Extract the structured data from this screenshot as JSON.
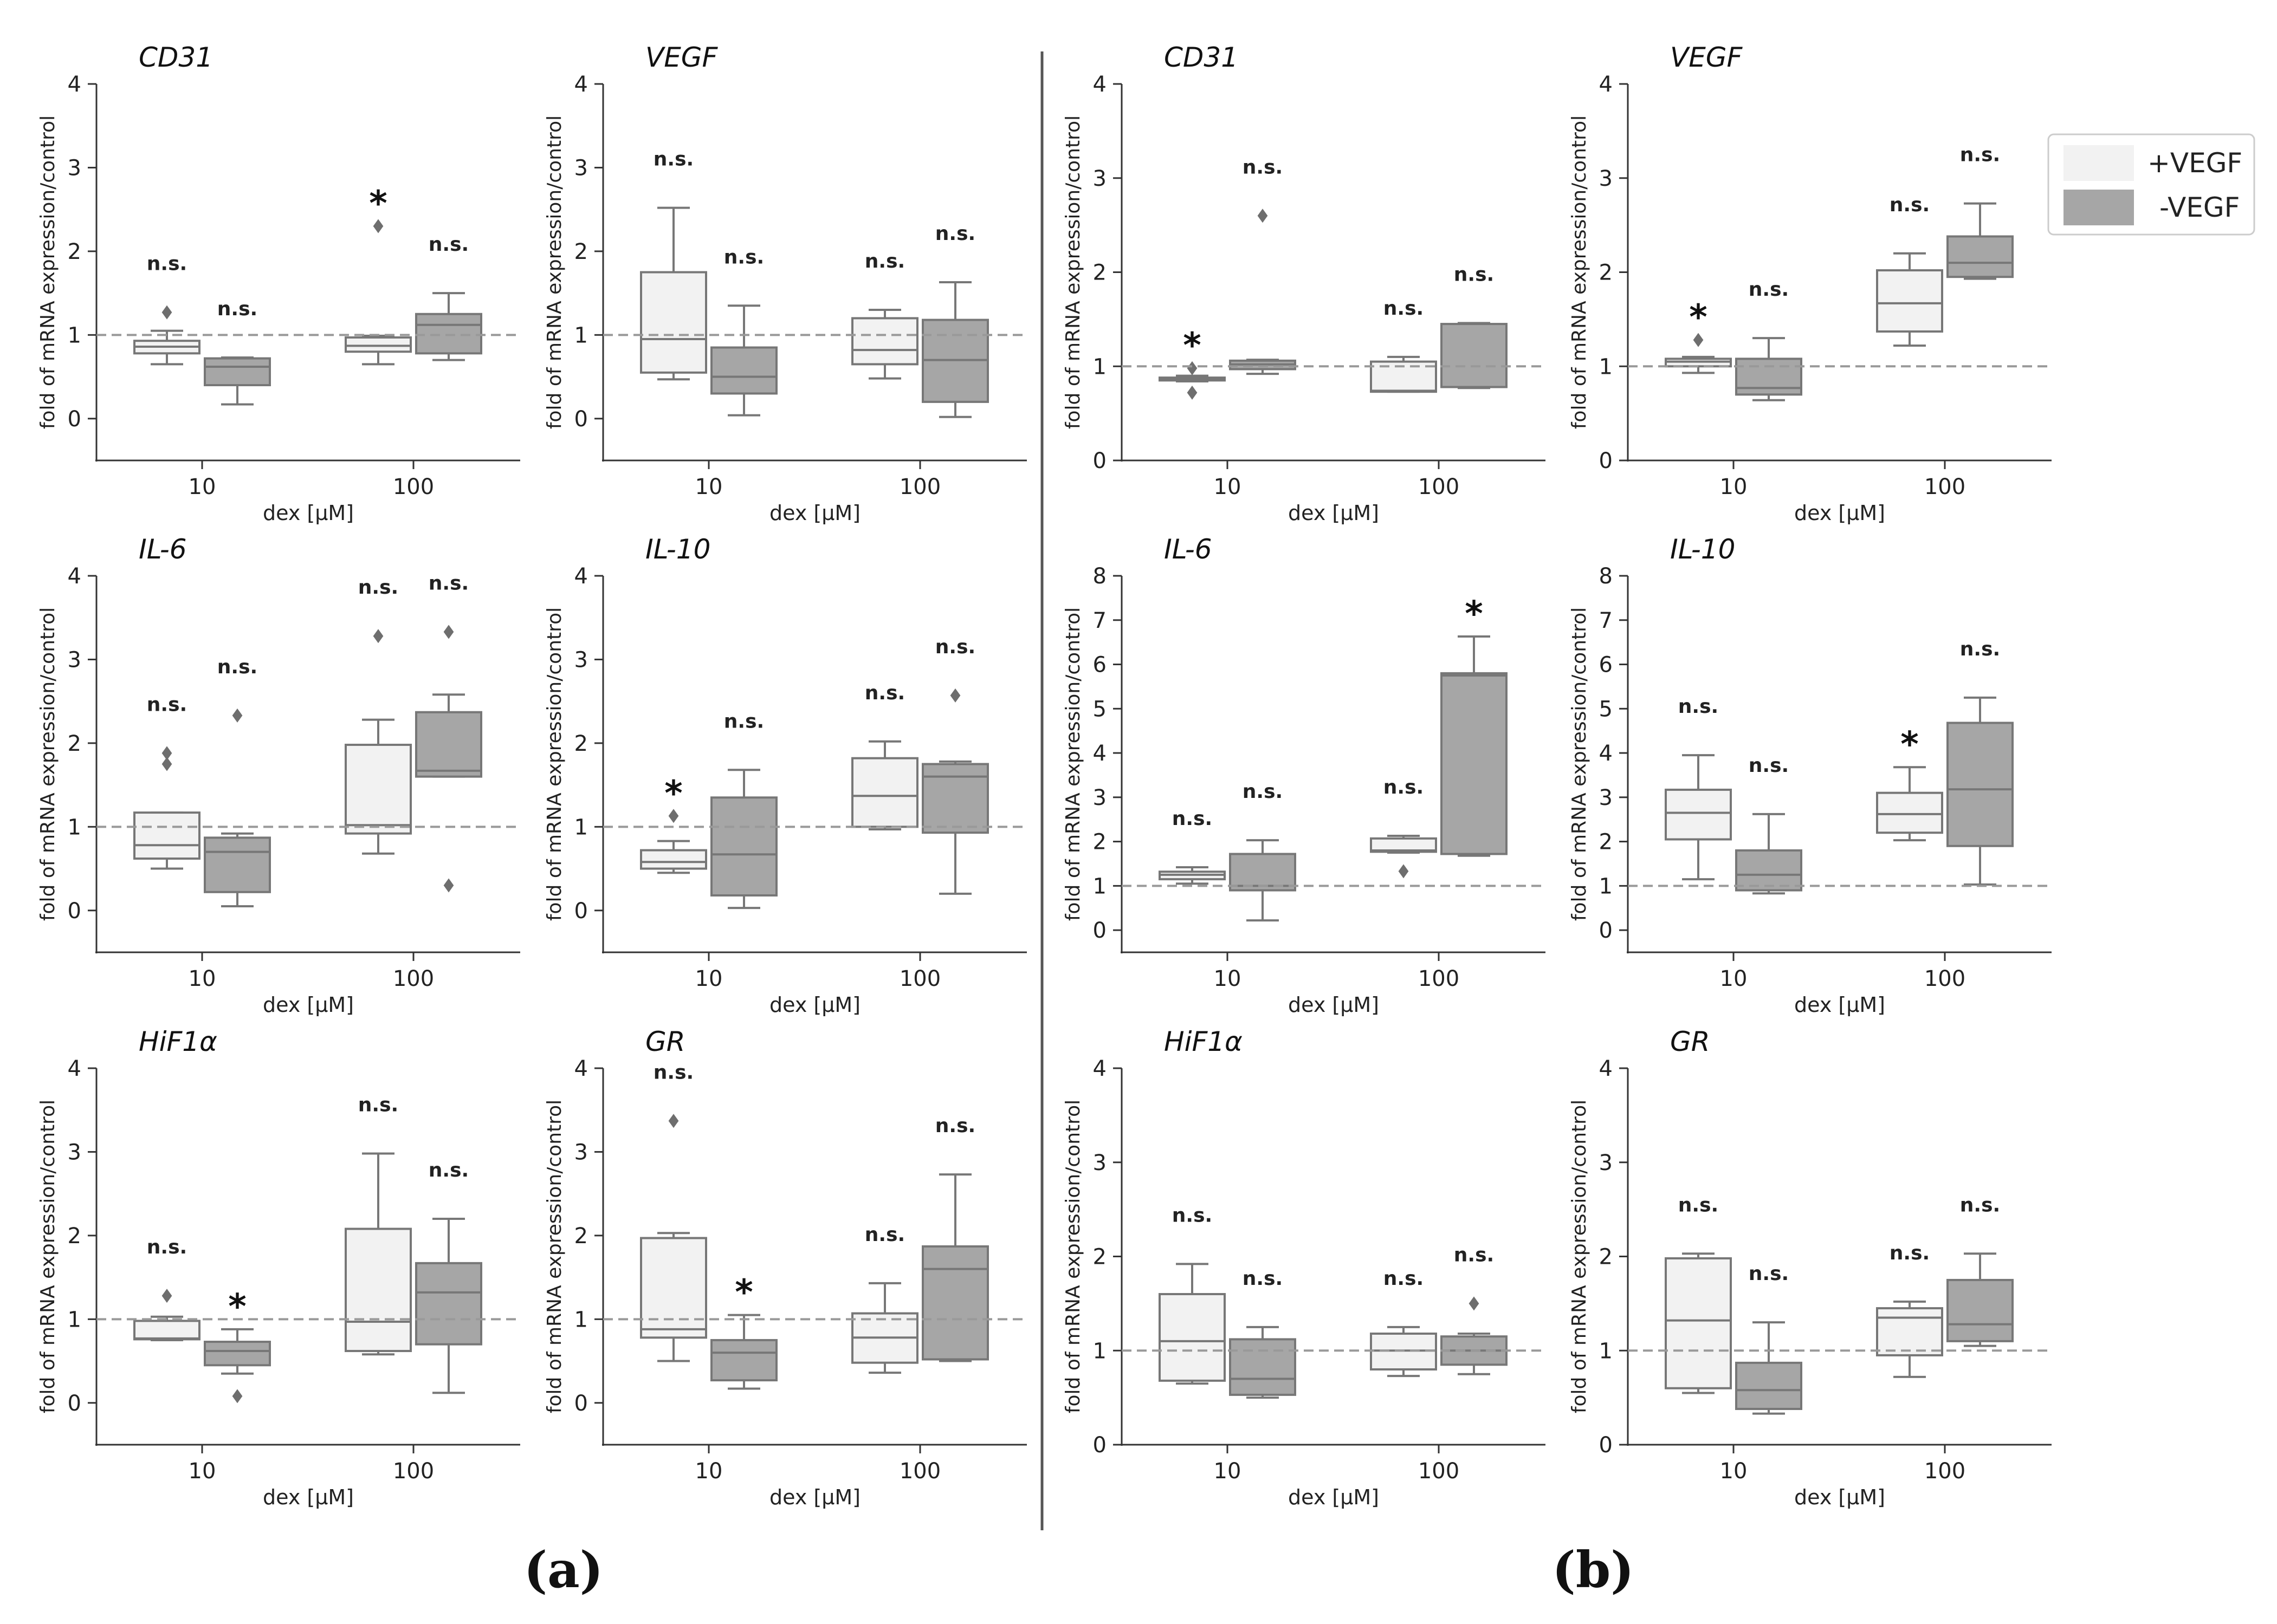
{
  "legend": {
    "items": [
      {
        "label": "+VEGF",
        "color": "#f2f2f2"
      },
      {
        "label": "-VEGF",
        "color": "#a6a6a6"
      }
    ]
  },
  "panel_labels": [
    "(a)",
    "(b)"
  ],
  "colors": {
    "plus_vegf": "#f2f2f2",
    "minus_vegf": "#a6a6a6",
    "stroke": "#777777",
    "reference": "#999999"
  },
  "chart_data": [
    {
      "panel": "a",
      "title": "CD31",
      "type": "box",
      "xlabel": "dex [µM]",
      "ylabel": "fold of mRNA expression/control",
      "ylim": [
        -0.5,
        4
      ],
      "yticks": [
        0,
        1,
        2,
        3,
        4
      ],
      "categories": [
        "10",
        "100"
      ],
      "reference_line": 1,
      "groups": [
        {
          "category": "10",
          "series": "+VEGF",
          "min": 0.65,
          "q1": 0.78,
          "median": 0.86,
          "q3": 0.93,
          "max": 1.05,
          "outliers": [
            1.27
          ],
          "annotation": "n.s."
        },
        {
          "category": "10",
          "series": "-VEGF",
          "min": 0.17,
          "q1": 0.4,
          "median": 0.62,
          "q3": 0.72,
          "max": 0.73,
          "outliers": [],
          "annotation": "n.s."
        },
        {
          "category": "100",
          "series": "+VEGF",
          "min": 0.65,
          "q1": 0.8,
          "median": 0.87,
          "q3": 0.97,
          "max": 0.99,
          "outliers": [
            2.3
          ],
          "annotation": "*"
        },
        {
          "category": "100",
          "series": "-VEGF",
          "min": 0.7,
          "q1": 0.78,
          "median": 1.12,
          "q3": 1.25,
          "max": 1.5,
          "outliers": [],
          "annotation": "n.s."
        }
      ]
    },
    {
      "panel": "a",
      "title": "VEGF",
      "type": "box",
      "xlabel": "dex [µM]",
      "ylabel": "fold of mRNA expression/control",
      "ylim": [
        -0.5,
        4
      ],
      "yticks": [
        0,
        1,
        2,
        3,
        4
      ],
      "categories": [
        "10",
        "100"
      ],
      "reference_line": 1,
      "groups": [
        {
          "category": "10",
          "series": "+VEGF",
          "min": 0.47,
          "q1": 0.55,
          "median": 0.95,
          "q3": 1.75,
          "max": 2.52,
          "outliers": [],
          "annotation": "n.s."
        },
        {
          "category": "10",
          "series": "-VEGF",
          "min": 0.04,
          "q1": 0.3,
          "median": 0.5,
          "q3": 0.85,
          "max": 1.35,
          "outliers": [],
          "annotation": "n.s."
        },
        {
          "category": "100",
          "series": "+VEGF",
          "min": 0.48,
          "q1": 0.65,
          "median": 0.82,
          "q3": 1.2,
          "max": 1.3,
          "outliers": [],
          "annotation": "n.s."
        },
        {
          "category": "100",
          "series": "-VEGF",
          "min": 0.02,
          "q1": 0.2,
          "median": 0.7,
          "q3": 1.18,
          "max": 1.63,
          "outliers": [],
          "annotation": "n.s."
        }
      ]
    },
    {
      "panel": "a",
      "title": "IL-6",
      "type": "box",
      "xlabel": "dex [µM]",
      "ylabel": "fold of mRNA expression/control",
      "ylim": [
        -0.5,
        4
      ],
      "yticks": [
        0,
        1,
        2,
        3,
        4
      ],
      "categories": [
        "10",
        "100"
      ],
      "reference_line": 1,
      "groups": [
        {
          "category": "10",
          "series": "+VEGF",
          "min": 0.5,
          "q1": 0.62,
          "median": 0.78,
          "q3": 1.17,
          "max": 1.17,
          "outliers": [
            1.75,
            1.88
          ],
          "annotation": "n.s."
        },
        {
          "category": "10",
          "series": "-VEGF",
          "min": 0.05,
          "q1": 0.22,
          "median": 0.7,
          "q3": 0.87,
          "max": 0.92,
          "outliers": [
            2.33
          ],
          "annotation": "n.s."
        },
        {
          "category": "100",
          "series": "+VEGF",
          "min": 0.68,
          "q1": 0.92,
          "median": 1.02,
          "q3": 1.98,
          "max": 2.28,
          "outliers": [
            3.28
          ],
          "annotation": "n.s."
        },
        {
          "category": "100",
          "series": "-VEGF",
          "min": 1.6,
          "q1": 1.6,
          "median": 1.67,
          "q3": 2.37,
          "max": 2.58,
          "outliers": [
            3.33,
            0.3
          ],
          "annotation": "n.s."
        }
      ]
    },
    {
      "panel": "a",
      "title": "IL-10",
      "type": "box",
      "xlabel": "dex [µM]",
      "ylabel": "fold of mRNA expression/control",
      "ylim": [
        -0.5,
        4
      ],
      "yticks": [
        0,
        1,
        2,
        3,
        4
      ],
      "categories": [
        "10",
        "100"
      ],
      "reference_line": 1,
      "groups": [
        {
          "category": "10",
          "series": "+VEGF",
          "min": 0.45,
          "q1": 0.5,
          "median": 0.58,
          "q3": 0.72,
          "max": 0.83,
          "outliers": [
            1.13
          ],
          "annotation": "*"
        },
        {
          "category": "10",
          "series": "-VEGF",
          "min": 0.03,
          "q1": 0.18,
          "median": 0.67,
          "q3": 1.35,
          "max": 1.68,
          "outliers": [],
          "annotation": "n.s."
        },
        {
          "category": "100",
          "series": "+VEGF",
          "min": 0.97,
          "q1": 1.0,
          "median": 1.37,
          "q3": 1.82,
          "max": 2.02,
          "outliers": [],
          "annotation": "n.s."
        },
        {
          "category": "100",
          "series": "-VEGF",
          "min": 0.2,
          "q1": 0.93,
          "median": 1.6,
          "q3": 1.75,
          "max": 1.78,
          "outliers": [
            2.57
          ],
          "annotation": "n.s."
        }
      ]
    },
    {
      "panel": "a",
      "title": "HiF1α",
      "type": "box",
      "xlabel": "dex [µM]",
      "ylabel": "fold of mRNA expression/control",
      "ylim": [
        -0.5,
        4
      ],
      "yticks": [
        0,
        1,
        2,
        3,
        4
      ],
      "categories": [
        "10",
        "100"
      ],
      "reference_line": 1,
      "groups": [
        {
          "category": "10",
          "series": "+VEGF",
          "min": 0.75,
          "q1": 0.76,
          "median": 0.77,
          "q3": 0.98,
          "max": 1.03,
          "outliers": [
            1.28
          ],
          "annotation": "n.s."
        },
        {
          "category": "10",
          "series": "-VEGF",
          "min": 0.35,
          "q1": 0.45,
          "median": 0.62,
          "q3": 0.73,
          "max": 0.88,
          "outliers": [
            0.08
          ],
          "annotation": "*"
        },
        {
          "category": "100",
          "series": "+VEGF",
          "min": 0.58,
          "q1": 0.62,
          "median": 0.97,
          "q3": 2.08,
          "max": 2.98,
          "outliers": [],
          "annotation": "n.s."
        },
        {
          "category": "100",
          "series": "-VEGF",
          "min": 0.12,
          "q1": 0.7,
          "median": 1.32,
          "q3": 1.67,
          "max": 2.2,
          "outliers": [],
          "annotation": "n.s."
        }
      ]
    },
    {
      "panel": "a",
      "title": "GR",
      "type": "box",
      "xlabel": "dex [µM]",
      "ylabel": "fold of mRNA expression/control",
      "ylim": [
        -0.5,
        4
      ],
      "yticks": [
        0,
        1,
        2,
        3,
        4
      ],
      "categories": [
        "10",
        "100"
      ],
      "reference_line": 1,
      "groups": [
        {
          "category": "10",
          "series": "+VEGF",
          "min": 0.5,
          "q1": 0.78,
          "median": 0.88,
          "q3": 1.97,
          "max": 2.03,
          "outliers": [
            3.37
          ],
          "annotation": "n.s."
        },
        {
          "category": "10",
          "series": "-VEGF",
          "min": 0.17,
          "q1": 0.27,
          "median": 0.6,
          "q3": 0.75,
          "max": 1.05,
          "outliers": [],
          "annotation": "*"
        },
        {
          "category": "100",
          "series": "+VEGF",
          "min": 0.36,
          "q1": 0.48,
          "median": 0.78,
          "q3": 1.07,
          "max": 1.43,
          "outliers": [],
          "annotation": "n.s."
        },
        {
          "category": "100",
          "series": "-VEGF",
          "min": 0.5,
          "q1": 0.52,
          "median": 1.6,
          "q3": 1.87,
          "max": 2.73,
          "outliers": [],
          "annotation": "n.s."
        }
      ]
    },
    {
      "panel": "b",
      "title": "CD31",
      "type": "box",
      "xlabel": "dex [µM]",
      "ylabel": "fold of mRNA expression/control",
      "ylim": [
        0,
        4
      ],
      "yticks": [
        0,
        1,
        2,
        3,
        4
      ],
      "categories": [
        "10",
        "100"
      ],
      "reference_line": 1,
      "groups": [
        {
          "category": "10",
          "series": "+VEGF",
          "min": 0.84,
          "q1": 0.85,
          "median": 0.87,
          "q3": 0.88,
          "max": 0.9,
          "outliers": [
            0.98,
            0.72
          ],
          "annotation": "*"
        },
        {
          "category": "10",
          "series": "-VEGF",
          "min": 0.92,
          "q1": 0.97,
          "median": 1.02,
          "q3": 1.06,
          "max": 1.07,
          "outliers": [
            2.6
          ],
          "annotation": "n.s."
        },
        {
          "category": "100",
          "series": "+VEGF",
          "min": 0.73,
          "q1": 0.73,
          "median": 0.74,
          "q3": 1.05,
          "max": 1.1,
          "outliers": [],
          "annotation": "n.s."
        },
        {
          "category": "100",
          "series": "-VEGF",
          "min": 0.77,
          "q1": 0.78,
          "median": 0.78,
          "q3": 1.45,
          "max": 1.46,
          "outliers": [],
          "annotation": "n.s."
        }
      ]
    },
    {
      "panel": "b",
      "title": "VEGF",
      "type": "box",
      "xlabel": "dex [µM]",
      "ylabel": "fold of mRNA expression/control",
      "ylim": [
        0,
        4
      ],
      "yticks": [
        0,
        1,
        2,
        3,
        4
      ],
      "categories": [
        "10",
        "100"
      ],
      "reference_line": 1,
      "groups": [
        {
          "category": "10",
          "series": "+VEGF",
          "min": 0.93,
          "q1": 1.0,
          "median": 1.05,
          "q3": 1.08,
          "max": 1.1,
          "outliers": [
            1.28
          ],
          "annotation": "*"
        },
        {
          "category": "10",
          "series": "-VEGF",
          "min": 0.64,
          "q1": 0.7,
          "median": 0.77,
          "q3": 1.08,
          "max": 1.3,
          "outliers": [],
          "annotation": "n.s."
        },
        {
          "category": "100",
          "series": "+VEGF",
          "min": 1.22,
          "q1": 1.37,
          "median": 1.67,
          "q3": 2.02,
          "max": 2.2,
          "outliers": [],
          "annotation": "n.s."
        },
        {
          "category": "100",
          "series": "-VEGF",
          "min": 1.93,
          "q1": 1.95,
          "median": 2.1,
          "q3": 2.38,
          "max": 2.73,
          "outliers": [],
          "annotation": "n.s."
        }
      ]
    },
    {
      "panel": "b",
      "title": "IL-6",
      "type": "box",
      "xlabel": "dex [µM]",
      "ylabel": "fold of mRNA expression/control",
      "ylim": [
        -0.5,
        8
      ],
      "yticks": [
        0,
        1,
        2,
        3,
        4,
        5,
        6,
        7,
        8
      ],
      "categories": [
        "10",
        "100"
      ],
      "reference_line": 1,
      "groups": [
        {
          "category": "10",
          "series": "+VEGF",
          "min": 1.05,
          "q1": 1.15,
          "median": 1.25,
          "q3": 1.32,
          "max": 1.42,
          "outliers": [],
          "annotation": "n.s."
        },
        {
          "category": "10",
          "series": "-VEGF",
          "min": 0.22,
          "q1": 0.9,
          "median": 1.0,
          "q3": 1.72,
          "max": 2.03,
          "outliers": [],
          "annotation": "n.s."
        },
        {
          "category": "100",
          "series": "+VEGF",
          "min": 1.75,
          "q1": 1.77,
          "median": 1.8,
          "q3": 2.07,
          "max": 2.13,
          "outliers": [
            1.33
          ],
          "annotation": "n.s."
        },
        {
          "category": "100",
          "series": "-VEGF",
          "min": 1.68,
          "q1": 1.72,
          "median": 5.75,
          "q3": 5.8,
          "max": 6.63,
          "outliers": [],
          "annotation": "*"
        }
      ]
    },
    {
      "panel": "b",
      "title": "IL-10",
      "type": "box",
      "xlabel": "dex [µM]",
      "ylabel": "fold of mRNA expression/control",
      "ylim": [
        -0.5,
        8
      ],
      "yticks": [
        0,
        1,
        2,
        3,
        4,
        5,
        6,
        7,
        8
      ],
      "categories": [
        "10",
        "100"
      ],
      "reference_line": 1,
      "groups": [
        {
          "category": "10",
          "series": "+VEGF",
          "min": 1.15,
          "q1": 2.05,
          "median": 2.65,
          "q3": 3.17,
          "max": 3.95,
          "outliers": [],
          "annotation": "n.s."
        },
        {
          "category": "10",
          "series": "-VEGF",
          "min": 0.83,
          "q1": 0.9,
          "median": 1.25,
          "q3": 1.8,
          "max": 2.62,
          "outliers": [],
          "annotation": "n.s."
        },
        {
          "category": "100",
          "series": "+VEGF",
          "min": 2.03,
          "q1": 2.2,
          "median": 2.62,
          "q3": 3.1,
          "max": 3.68,
          "outliers": [],
          "annotation": "*"
        },
        {
          "category": "100",
          "series": "-VEGF",
          "min": 1.03,
          "q1": 1.9,
          "median": 3.18,
          "q3": 4.68,
          "max": 5.25,
          "outliers": [],
          "annotation": "n.s."
        }
      ]
    },
    {
      "panel": "b",
      "title": "HiF1α",
      "type": "box",
      "xlabel": "dex [µM]",
      "ylabel": "fold of mRNA expression/control",
      "ylim": [
        0,
        4
      ],
      "yticks": [
        0,
        1,
        2,
        3,
        4
      ],
      "categories": [
        "10",
        "100"
      ],
      "reference_line": 1,
      "groups": [
        {
          "category": "10",
          "series": "+VEGF",
          "min": 0.65,
          "q1": 0.68,
          "median": 1.1,
          "q3": 1.6,
          "max": 1.92,
          "outliers": [],
          "annotation": "n.s."
        },
        {
          "category": "10",
          "series": "-VEGF",
          "min": 0.5,
          "q1": 0.53,
          "median": 0.7,
          "q3": 1.12,
          "max": 1.25,
          "outliers": [],
          "annotation": "n.s."
        },
        {
          "category": "100",
          "series": "+VEGF",
          "min": 0.73,
          "q1": 0.8,
          "median": 1.0,
          "q3": 1.18,
          "max": 1.25,
          "outliers": [],
          "annotation": "n.s."
        },
        {
          "category": "100",
          "series": "-VEGF",
          "min": 0.75,
          "q1": 0.85,
          "median": 1.0,
          "q3": 1.15,
          "max": 1.18,
          "outliers": [
            1.5
          ],
          "annotation": "n.s."
        }
      ]
    },
    {
      "panel": "b",
      "title": "GR",
      "type": "box",
      "xlabel": "dex [µM]",
      "ylabel": "fold of mRNA expression/control",
      "ylim": [
        0,
        4
      ],
      "yticks": [
        0,
        1,
        2,
        3,
        4
      ],
      "categories": [
        "10",
        "100"
      ],
      "reference_line": 1,
      "groups": [
        {
          "category": "10",
          "series": "+VEGF",
          "min": 0.55,
          "q1": 0.6,
          "median": 1.32,
          "q3": 1.98,
          "max": 2.03,
          "outliers": [],
          "annotation": "n.s."
        },
        {
          "category": "10",
          "series": "-VEGF",
          "min": 0.33,
          "q1": 0.38,
          "median": 0.58,
          "q3": 0.87,
          "max": 1.3,
          "outliers": [],
          "annotation": "n.s."
        },
        {
          "category": "100",
          "series": "+VEGF",
          "min": 0.72,
          "q1": 0.95,
          "median": 1.35,
          "q3": 1.45,
          "max": 1.52,
          "outliers": [],
          "annotation": "n.s."
        },
        {
          "category": "100",
          "series": "-VEGF",
          "min": 1.05,
          "q1": 1.1,
          "median": 1.28,
          "q3": 1.75,
          "max": 2.03,
          "outliers": [],
          "annotation": "n.s."
        }
      ]
    }
  ]
}
